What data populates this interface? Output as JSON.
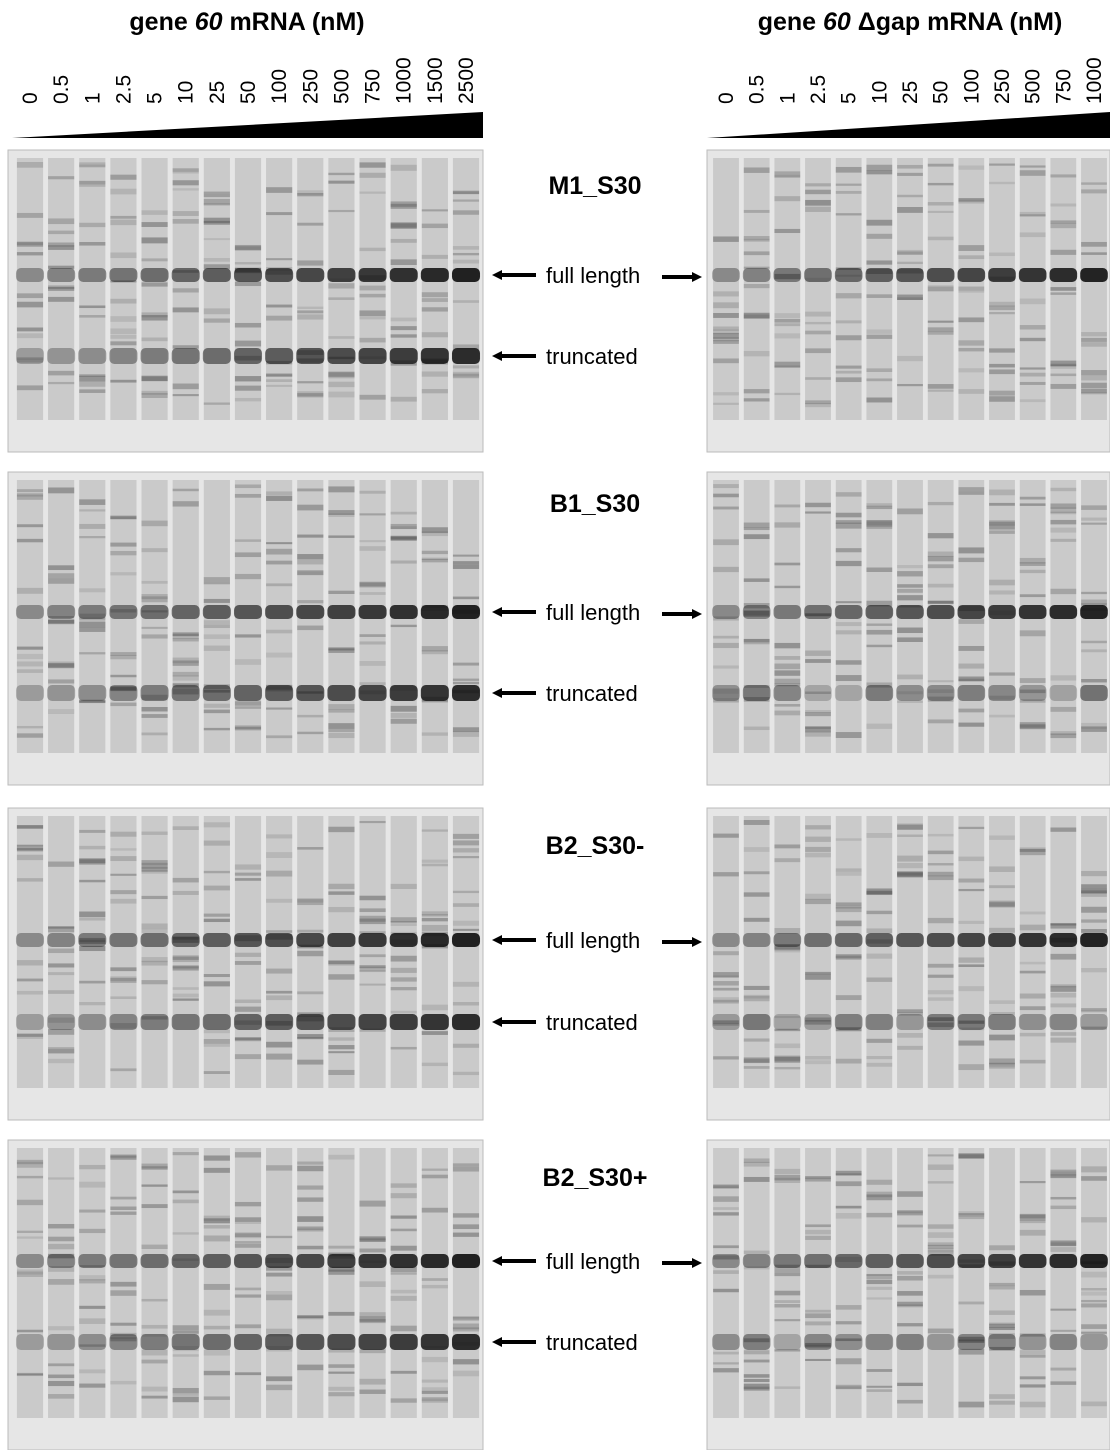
{
  "header": {
    "left": {
      "prefix": "gene ",
      "italic": "60",
      "suffix": " mRNA (nM)",
      "lanes": [
        "0",
        "0.5",
        "1",
        "2.5",
        "5",
        "10",
        "25",
        "50",
        "100",
        "250",
        "500",
        "750",
        "1000",
        "1500",
        "2500"
      ]
    },
    "right": {
      "prefix": "gene ",
      "italic": "60",
      "suffix": " Δgap mRNA (nM)",
      "lanes": [
        "0",
        "0.5",
        "1",
        "2.5",
        "5",
        "10",
        "25",
        "50",
        "100",
        "250",
        "500",
        "750",
        "1000"
      ]
    }
  },
  "rows": [
    {
      "label": "M1_S30",
      "full": "full length",
      "truncated": "truncated"
    },
    {
      "label": "B1_S30",
      "full": "full length",
      "truncated": "truncated"
    },
    {
      "label": "B2_S30-",
      "full": "full length",
      "truncated": "truncated"
    },
    {
      "label": "B2_S30+",
      "full": "full length",
      "truncated": "truncated"
    }
  ]
}
